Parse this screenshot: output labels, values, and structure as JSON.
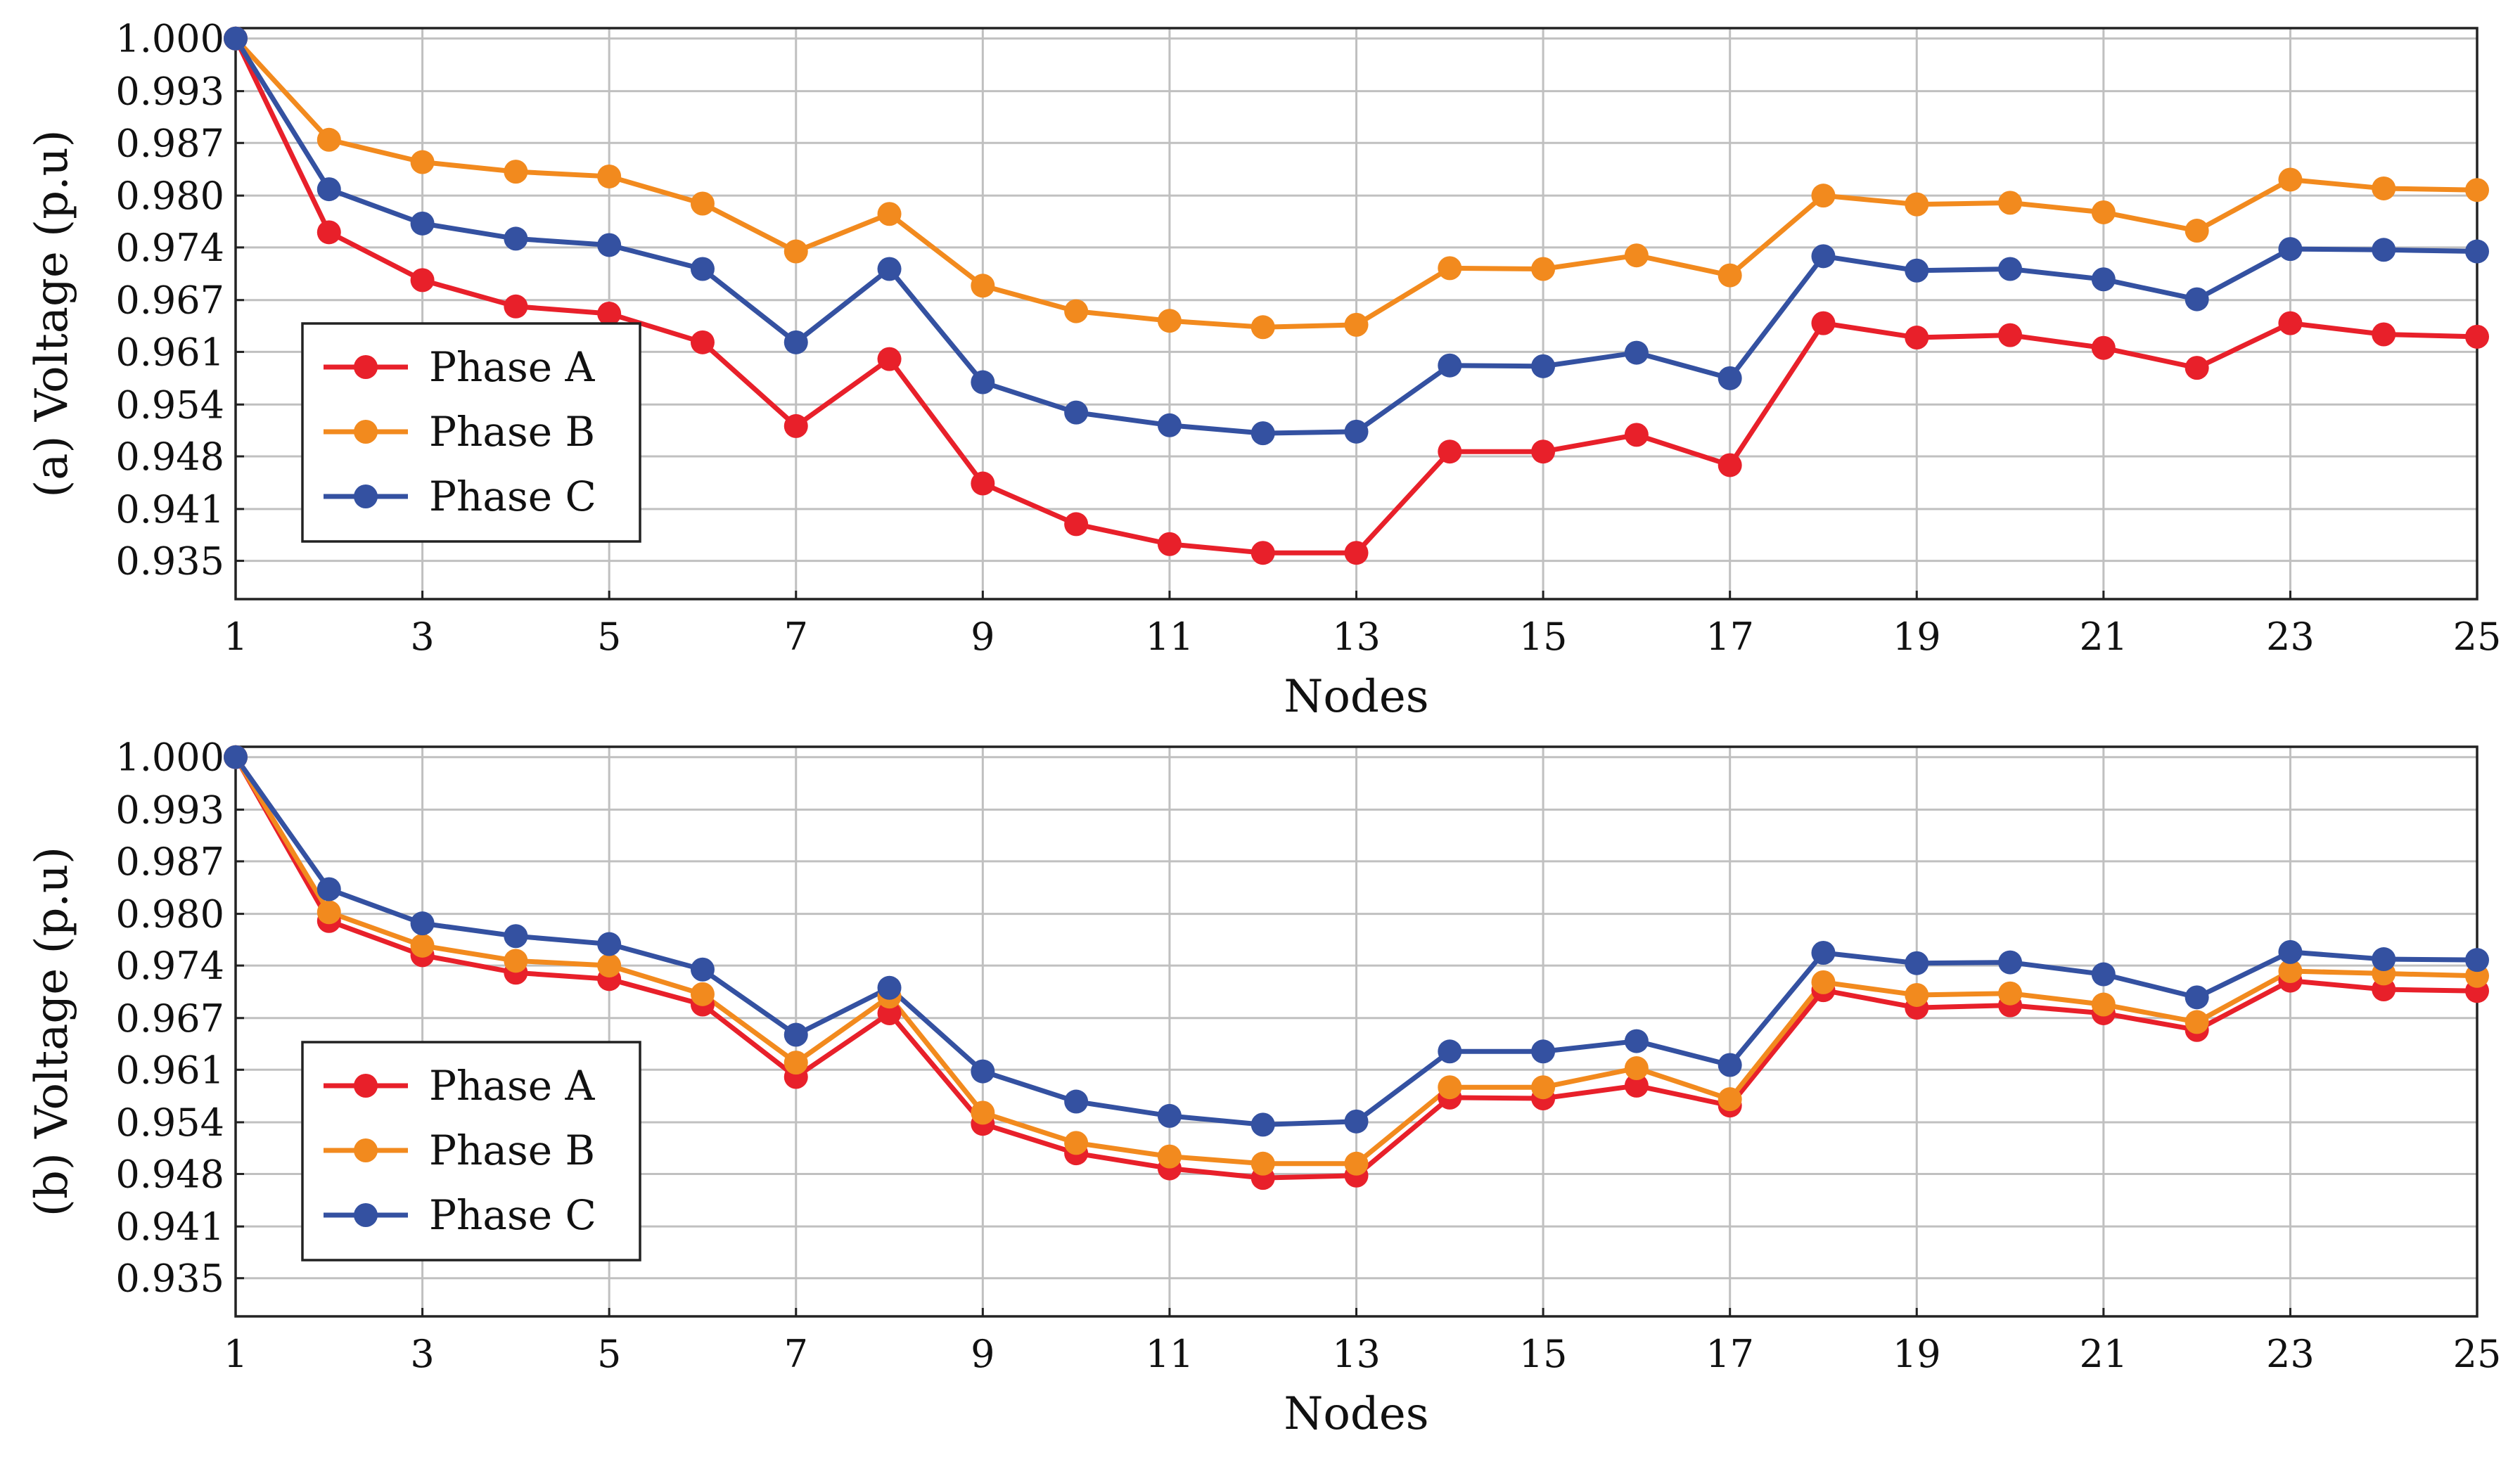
{
  "colors": {
    "phase_a": "#e8202a",
    "phase_b": "#f28a1e",
    "phase_c": "#3451a1",
    "grid": "#c0c0c0",
    "frame": "#222222"
  },
  "chart_data": [
    {
      "id": "a",
      "type": "line",
      "title": "",
      "xlabel": "Nodes",
      "ylabel": "(a) Voltage (p.u)",
      "xlim": [
        1,
        25
      ],
      "ylim": [
        0.9297,
        1.0013
      ],
      "x": [
        1,
        2,
        3,
        4,
        5,
        6,
        7,
        8,
        9,
        10,
        11,
        12,
        13,
        14,
        15,
        16,
        17,
        18,
        19,
        20,
        21,
        22,
        23,
        24,
        25
      ],
      "x_ticks": [
        1,
        3,
        5,
        7,
        9,
        11,
        13,
        15,
        17,
        19,
        21,
        23,
        25
      ],
      "x_tick_labels": [
        "1",
        "3",
        "5",
        "7",
        "9",
        "11",
        "13",
        "15",
        "17",
        "19",
        "21",
        "23",
        "25"
      ],
      "y_ticks": [
        1.0,
        0.9934,
        0.9869,
        0.9803,
        0.9738,
        0.9672,
        0.9607,
        0.9541,
        0.9476,
        0.941,
        0.9345
      ],
      "y_tick_labels": [
        "1.000",
        "0.993",
        "0.987",
        "0.980",
        "0.974",
        "0.967",
        "0.961",
        "0.954",
        "0.948",
        "0.941",
        "0.935"
      ],
      "grid": true,
      "legend_position": "bottom-left",
      "series": [
        {
          "name": "Phase A",
          "color_key": "phase_a",
          "values": [
            1.0,
            0.9757,
            0.9697,
            0.9664,
            0.9655,
            0.9619,
            0.9514,
            0.9598,
            0.9442,
            0.9391,
            0.9366,
            0.9355,
            0.9355,
            0.9482,
            0.9482,
            0.9503,
            0.9465,
            0.9643,
            0.9625,
            0.9628,
            0.9612,
            0.9587,
            0.9643,
            0.9629,
            0.9626
          ]
        },
        {
          "name": "Phase B",
          "color_key": "phase_b",
          "values": [
            1.0,
            0.9873,
            0.9845,
            0.9833,
            0.9827,
            0.9793,
            0.9733,
            0.978,
            0.969,
            0.9658,
            0.9646,
            0.9638,
            0.9641,
            0.9712,
            0.9711,
            0.9728,
            0.9703,
            0.9803,
            0.9792,
            0.9794,
            0.9782,
            0.9759,
            0.9823,
            0.9812,
            0.981
          ]
        },
        {
          "name": "Phase C",
          "color_key": "phase_c",
          "values": [
            1.0,
            0.9811,
            0.9768,
            0.9749,
            0.9741,
            0.9711,
            0.9619,
            0.9711,
            0.9569,
            0.9531,
            0.9515,
            0.9505,
            0.9507,
            0.959,
            0.9589,
            0.9606,
            0.9574,
            0.9727,
            0.9709,
            0.9711,
            0.9698,
            0.9673,
            0.9736,
            0.9735,
            0.9733
          ]
        }
      ]
    },
    {
      "id": "b",
      "type": "line",
      "title": "",
      "xlabel": "Nodes",
      "ylabel": "(b) Voltage (p.u)",
      "xlim": [
        1,
        25
      ],
      "ylim": [
        0.9297,
        1.0013
      ],
      "x": [
        1,
        2,
        3,
        4,
        5,
        6,
        7,
        8,
        9,
        10,
        11,
        12,
        13,
        14,
        15,
        16,
        17,
        18,
        19,
        20,
        21,
        22,
        23,
        24,
        25
      ],
      "x_ticks": [
        1,
        3,
        5,
        7,
        9,
        11,
        13,
        15,
        17,
        19,
        21,
        23,
        25
      ],
      "x_tick_labels": [
        "1",
        "3",
        "5",
        "7",
        "9",
        "11",
        "13",
        "15",
        "17",
        "19",
        "21",
        "23",
        "25"
      ],
      "y_ticks": [
        1.0,
        0.9934,
        0.9869,
        0.9803,
        0.9738,
        0.9672,
        0.9607,
        0.9541,
        0.9476,
        0.941,
        0.9345
      ],
      "y_tick_labels": [
        "1.000",
        "0.993",
        "0.987",
        "0.980",
        "0.974",
        "0.967",
        "0.961",
        "0.954",
        "0.948",
        "0.941",
        "0.935"
      ],
      "grid": true,
      "legend_position": "bottom-left",
      "series": [
        {
          "name": "Phase A",
          "color_key": "phase_a",
          "values": [
            1.0,
            0.9794,
            0.9751,
            0.9729,
            0.9721,
            0.9689,
            0.9598,
            0.9678,
            0.9539,
            0.9502,
            0.9483,
            0.9471,
            0.9474,
            0.9572,
            0.9571,
            0.9587,
            0.9562,
            0.9707,
            0.9685,
            0.9688,
            0.9678,
            0.9657,
            0.9719,
            0.9708,
            0.9706
          ]
        },
        {
          "name": "Phase B",
          "color_key": "phase_b",
          "values": [
            1.0,
            0.9805,
            0.9763,
            0.9744,
            0.9738,
            0.9702,
            0.9616,
            0.9699,
            0.9553,
            0.9515,
            0.9498,
            0.9489,
            0.9489,
            0.9585,
            0.9585,
            0.9609,
            0.957,
            0.9717,
            0.9701,
            0.9703,
            0.9689,
            0.9667,
            0.9731,
            0.9728,
            0.9725
          ]
        },
        {
          "name": "Phase C",
          "color_key": "phase_c",
          "values": [
            1.0,
            0.9834,
            0.9791,
            0.9775,
            0.9765,
            0.9733,
            0.9651,
            0.971,
            0.9605,
            0.9567,
            0.9549,
            0.9538,
            0.9542,
            0.963,
            0.963,
            0.9643,
            0.9613,
            0.9754,
            0.9741,
            0.9742,
            0.9727,
            0.9698,
            0.9755,
            0.9746,
            0.9745
          ]
        }
      ]
    }
  ]
}
